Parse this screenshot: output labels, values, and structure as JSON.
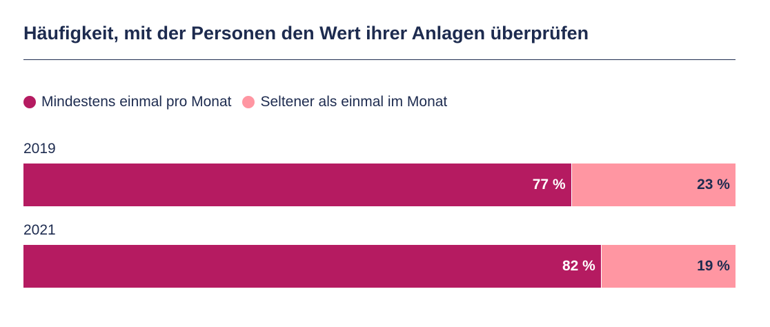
{
  "title": "Häufigkeit, mit der Personen den Wert ihrer Anlagen überprüfen",
  "colors": {
    "primary": "#b51b61",
    "secondary": "#ff96a2",
    "text": "#1d2b4f"
  },
  "chart_data": {
    "type": "bar",
    "orientation": "horizontal",
    "stacked": true,
    "title": "Häufigkeit, mit der Personen den Wert ihrer Anlagen überprüfen",
    "categories": [
      "2019",
      "2021"
    ],
    "series": [
      {
        "name": "Mindestens einmal pro Monat",
        "values": [
          77,
          82
        ],
        "labels": [
          "77 %",
          "82 %"
        ],
        "color": "#b51b61"
      },
      {
        "name": "Seltener als einmal im Monat",
        "values": [
          23,
          19
        ],
        "labels": [
          "23 %",
          "19 %"
        ],
        "color": "#ff96a2"
      }
    ],
    "legend_position": "top-left",
    "grid": false
  }
}
